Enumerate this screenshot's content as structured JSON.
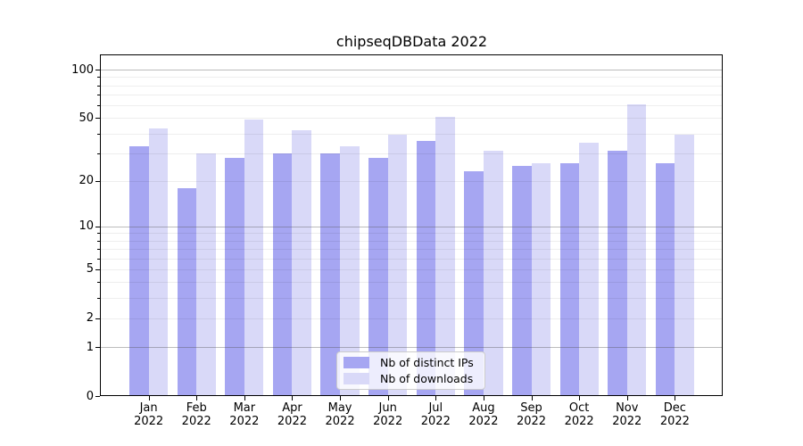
{
  "title": "chipseqDBData 2022",
  "chart_data": {
    "type": "bar",
    "title": "chipseqDBData 2022",
    "categories": [
      "Jan",
      "Feb",
      "Mar",
      "Apr",
      "May",
      "Jun",
      "Jul",
      "Aug",
      "Sep",
      "Oct",
      "Nov",
      "Dec"
    ],
    "year_label": "2022",
    "series": [
      {
        "name": "Nb of distinct IPs",
        "color": "#a6a6f2",
        "values": [
          33,
          18,
          28,
          30,
          30,
          28,
          36,
          23,
          25,
          26,
          31,
          26
        ]
      },
      {
        "name": "Nb of downloads",
        "color": "#d9d9f8",
        "values": [
          43,
          30,
          49,
          42,
          33,
          39,
          51,
          31,
          26,
          35,
          61,
          39
        ]
      }
    ],
    "xlabel": "",
    "ylabel": "",
    "yscale": "log10(1+y)",
    "yticks": [
      0,
      1,
      2,
      5,
      10,
      20,
      50,
      100
    ],
    "ytick_labels": [
      "0",
      "1",
      "2",
      "5",
      "10",
      "20",
      "50",
      "100"
    ],
    "minor_gridlines": [
      2,
      3,
      4,
      5,
      6,
      7,
      8,
      9,
      20,
      30,
      40,
      50,
      60,
      70,
      80,
      90
    ],
    "major_gridlines": [
      1,
      10,
      100
    ],
    "ylim": [
      0,
      122.6
    ],
    "grid": "horizontal",
    "legend_position": "lower center",
    "background_color": "#ffffff",
    "spine_color": "#000000"
  }
}
